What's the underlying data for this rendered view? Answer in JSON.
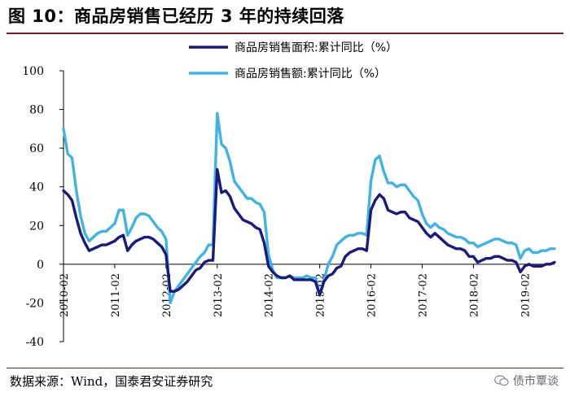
{
  "chart_data": {
    "type": "line",
    "title": "图 10：商品房销售已经历 3 年的持续回落",
    "xlabel": "",
    "ylabel": "",
    "ylim": [
      -40,
      100
    ],
    "yticks": [
      -40,
      -20,
      0,
      20,
      40,
      60,
      80,
      100
    ],
    "x_tick_labels": [
      "2010-02",
      "2011-02",
      "2012-02",
      "2013-02",
      "2014-02",
      "2015-02",
      "2016-02",
      "2017-02",
      "2018-02",
      "2019-02"
    ],
    "x_start": "2010-02",
    "grid": false,
    "legend_position": "top-right",
    "series": [
      {
        "name": "商品房销售面积:累计同比（%）",
        "color": "#1a1a7e",
        "values": [
          38,
          36,
          33,
          24,
          16,
          11,
          7,
          8,
          9,
          10,
          10,
          11,
          12,
          14,
          15,
          7,
          10,
          12,
          13,
          14,
          14,
          13,
          11,
          9,
          5,
          -14,
          -14,
          -13,
          -11,
          -9,
          -6,
          -3,
          -2,
          1,
          2,
          2,
          49,
          37,
          38,
          35,
          29,
          26,
          23,
          22,
          21,
          19,
          18,
          11,
          -1,
          -4,
          -6,
          -7,
          -7,
          -6,
          -8,
          -8,
          -8,
          -8,
          -8,
          -9,
          -16,
          -9,
          -6,
          -5,
          -2,
          -1,
          4,
          6,
          7,
          8,
          8,
          7,
          28,
          33,
          36,
          34,
          28,
          27,
          26,
          27,
          27,
          24,
          23,
          22,
          19,
          16,
          14,
          16,
          14,
          12,
          10,
          9,
          8,
          8,
          7,
          4,
          4,
          1,
          2,
          3,
          3,
          4,
          4,
          3,
          2,
          2,
          1,
          -4,
          -1,
          0,
          -1,
          -1,
          -1,
          0,
          0,
          1
        ],
        "value_labels": []
      },
      {
        "name": "商品房销售额:累计同比（%）",
        "color": "#3fb3e6",
        "values": [
          70,
          57,
          55,
          38,
          25,
          16,
          12,
          14,
          16,
          17,
          17,
          19,
          21,
          28,
          28,
          15,
          19,
          24,
          26,
          26,
          25,
          22,
          19,
          17,
          13,
          -20,
          -14,
          -11,
          -8,
          -5,
          -2,
          1,
          4,
          6,
          10,
          10,
          78,
          62,
          60,
          53,
          43,
          40,
          37,
          34,
          34,
          32,
          31,
          27,
          5,
          -3,
          -7,
          -7,
          -7,
          -6,
          -7,
          -7,
          -7,
          -6,
          -7,
          -7,
          -16,
          -8,
          0,
          4,
          10,
          12,
          14,
          15,
          15,
          16,
          16,
          15,
          43,
          54,
          56,
          48,
          42,
          42,
          40,
          41,
          41,
          38,
          35,
          33,
          26,
          21,
          19,
          21,
          19,
          18,
          16,
          15,
          14,
          14,
          13,
          11,
          11,
          9,
          10,
          11,
          12,
          13,
          13,
          12,
          11,
          11,
          10,
          3,
          7,
          8,
          6,
          6,
          7,
          7,
          8,
          8
        ],
        "value_labels": []
      }
    ]
  },
  "footer": {
    "source": "数据来源：Wind，国泰君安证券研究",
    "watermark": "债市覃谈"
  }
}
